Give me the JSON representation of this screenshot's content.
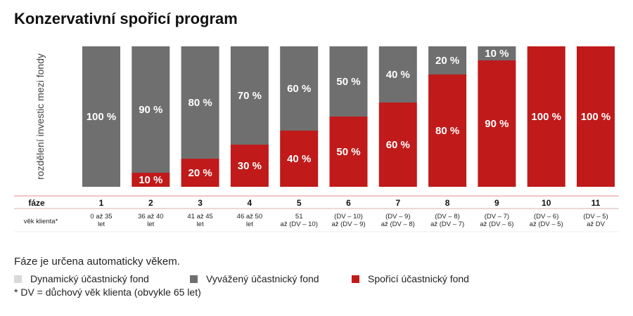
{
  "page": {
    "note": "Fáze je určena automaticky věkem.",
    "footnote": "* DV = důchový věk klienta (obvykle 65 let)"
  },
  "chart_data": {
    "type": "bar",
    "stacked": true,
    "title": "Konzervativní spořicí program",
    "ylabel": "rozdělení investic mezi fondy",
    "ylim": [
      0,
      100
    ],
    "grid": false,
    "row_headers": {
      "phase": "fáze",
      "age": "věk klienta*"
    },
    "categories": [
      "1",
      "2",
      "3",
      "4",
      "5",
      "6",
      "7",
      "8",
      "9",
      "10",
      "11"
    ],
    "age_ranges": [
      [
        "0 až 35",
        "let"
      ],
      [
        "36 až 40",
        "let"
      ],
      [
        "41 až 45",
        "let"
      ],
      [
        "46 až 50",
        "let"
      ],
      [
        "51",
        "až (DV – 10)"
      ],
      [
        "(DV – 10)",
        "až (DV – 9)"
      ],
      [
        "(DV – 9)",
        "až (DV – 8)"
      ],
      [
        "(DV – 8)",
        "až (DV – 7)"
      ],
      [
        "(DV – 7)",
        "až (DV – 6)"
      ],
      [
        "(DV – 6)",
        "až (DV – 5)"
      ],
      [
        "(DV – 5)",
        "až DV"
      ]
    ],
    "series": [
      {
        "name": "Dynamický účastnický fond",
        "color": "#d9d9d9",
        "values": [
          0,
          0,
          0,
          0,
          0,
          0,
          0,
          0,
          0,
          0,
          0
        ]
      },
      {
        "name": "Vyvážený účastnický fond",
        "color": "#6f6f6f",
        "values": [
          100,
          90,
          80,
          70,
          60,
          50,
          40,
          20,
          10,
          0,
          0
        ]
      },
      {
        "name": "Spořicí účastnický fond",
        "color": "#c01a1a",
        "values": [
          0,
          10,
          20,
          30,
          40,
          50,
          60,
          80,
          90,
          100,
          100
        ]
      }
    ],
    "label_suffix": " %",
    "legend_position": "bottom-left"
  }
}
